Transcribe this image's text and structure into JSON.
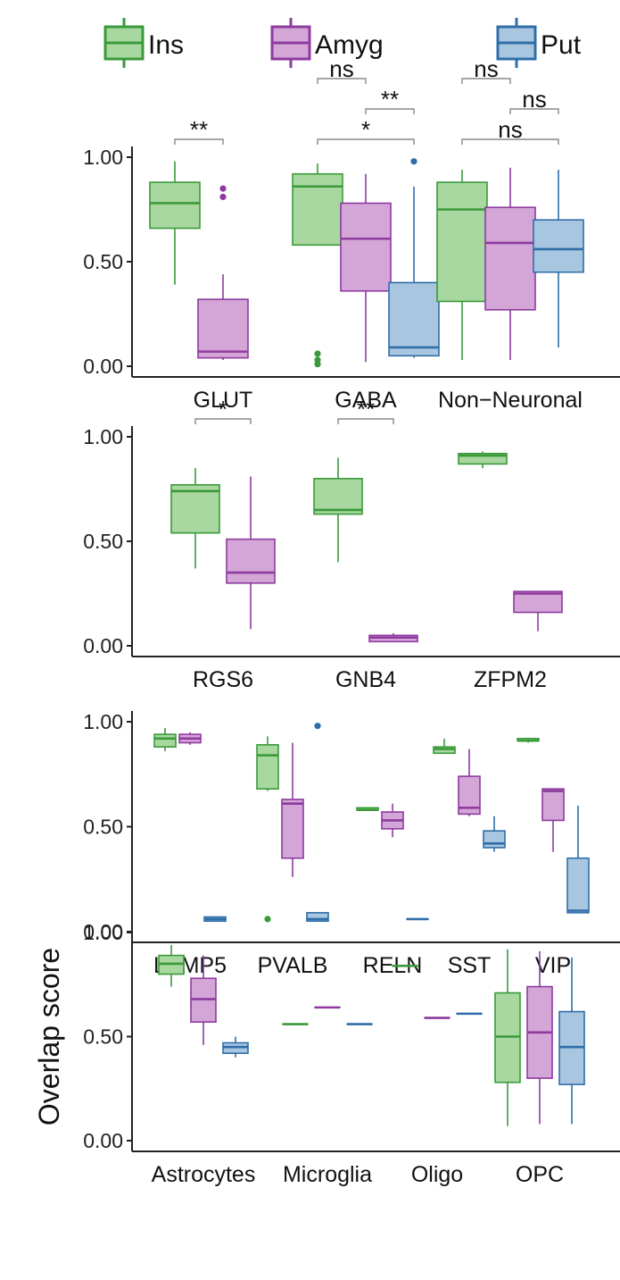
{
  "legend": [
    {
      "name": "Ins",
      "fill": "#a8d8a0",
      "stroke": "#3a9a3a"
    },
    {
      "name": "Amyg",
      "fill": "#d4a6d8",
      "stroke": "#8e3a9e"
    },
    {
      "name": "Put",
      "fill": "#a9c6e0",
      "stroke": "#2f6ea8"
    }
  ],
  "chart_data": [
    {
      "type": "box",
      "ylim": [
        0,
        1
      ],
      "yticks": [
        "0.00",
        "0.50",
        "1.00"
      ],
      "categories": [
        "GLUT",
        "GABA",
        "Non−Neuronal"
      ],
      "boxes": [
        {
          "cat": 0,
          "group": "Ins",
          "min": 0.39,
          "q1": 0.66,
          "median": 0.78,
          "q3": 0.88,
          "max": 0.98,
          "outliers": []
        },
        {
          "cat": 0,
          "group": "Amyg",
          "min": 0.03,
          "q1": 0.04,
          "median": 0.07,
          "q3": 0.32,
          "max": 0.44,
          "outliers": [
            0.81,
            0.85
          ]
        },
        {
          "cat": 1,
          "group": "Ins",
          "min": 0.58,
          "q1": 0.58,
          "median": 0.86,
          "q3": 0.92,
          "max": 0.97,
          "outliers": [
            0.01,
            0.03,
            0.06
          ]
        },
        {
          "cat": 1,
          "group": "Amyg",
          "min": 0.02,
          "q1": 0.36,
          "median": 0.61,
          "q3": 0.78,
          "max": 0.92,
          "outliers": []
        },
        {
          "cat": 1,
          "group": "Put",
          "min": 0.04,
          "q1": 0.05,
          "median": 0.09,
          "q3": 0.4,
          "max": 0.86,
          "outliers": [
            0.98
          ]
        },
        {
          "cat": 2,
          "group": "Ins",
          "min": 0.03,
          "q1": 0.31,
          "median": 0.75,
          "q3": 0.88,
          "max": 0.94,
          "outliers": []
        },
        {
          "cat": 2,
          "group": "Amyg",
          "min": 0.03,
          "q1": 0.27,
          "median": 0.59,
          "q3": 0.76,
          "max": 0.95,
          "outliers": []
        },
        {
          "cat": 2,
          "group": "Put",
          "min": 0.09,
          "q1": 0.45,
          "median": 0.56,
          "q3": 0.7,
          "max": 0.94,
          "outliers": []
        }
      ],
      "annotations": [
        {
          "text": "**",
          "from": [
            0,
            "Ins"
          ],
          "to": [
            0,
            "Amyg"
          ],
          "level": 0
        },
        {
          "text": "ns",
          "from": [
            1,
            "Ins"
          ],
          "to": [
            1,
            "Amyg"
          ],
          "level": 2
        },
        {
          "text": "**",
          "from": [
            1,
            "Amyg"
          ],
          "to": [
            1,
            "Put"
          ],
          "level": 1
        },
        {
          "text": "*",
          "from": [
            1,
            "Ins"
          ],
          "to": [
            1,
            "Put"
          ],
          "level": 0
        },
        {
          "text": "ns",
          "from": [
            2,
            "Ins"
          ],
          "to": [
            2,
            "Amyg"
          ],
          "level": 2
        },
        {
          "text": "ns",
          "from": [
            2,
            "Amyg"
          ],
          "to": [
            2,
            "Put"
          ],
          "level": 1
        },
        {
          "text": "ns",
          "from": [
            2,
            "Ins"
          ],
          "to": [
            2,
            "Put"
          ],
          "level": 0
        }
      ]
    },
    {
      "type": "box",
      "ylim": [
        0,
        1
      ],
      "yticks": [
        "0.00",
        "0.50",
        "1.00"
      ],
      "categories": [
        "RGS6",
        "GNB4",
        "ZFPM2"
      ],
      "boxes": [
        {
          "cat": 0,
          "group": "Ins",
          "min": 0.37,
          "q1": 0.54,
          "median": 0.74,
          "q3": 0.77,
          "max": 0.85,
          "outliers": []
        },
        {
          "cat": 0,
          "group": "Amyg",
          "min": 0.08,
          "q1": 0.3,
          "median": 0.35,
          "q3": 0.51,
          "max": 0.81,
          "outliers": []
        },
        {
          "cat": 1,
          "group": "Ins",
          "min": 0.4,
          "q1": 0.63,
          "median": 0.65,
          "q3": 0.8,
          "max": 0.9,
          "outliers": []
        },
        {
          "cat": 1,
          "group": "Amyg",
          "min": 0.02,
          "q1": 0.02,
          "median": 0.04,
          "q3": 0.05,
          "max": 0.06,
          "outliers": []
        },
        {
          "cat": 2,
          "group": "Ins",
          "min": 0.85,
          "q1": 0.87,
          "median": 0.91,
          "q3": 0.92,
          "max": 0.93,
          "outliers": []
        },
        {
          "cat": 2,
          "group": "Amyg",
          "min": 0.07,
          "q1": 0.16,
          "median": 0.25,
          "q3": 0.26,
          "max": 0.26,
          "outliers": []
        }
      ],
      "annotations": [
        {
          "text": "*",
          "from": [
            0,
            "Ins"
          ],
          "to": [
            0,
            "Amyg"
          ],
          "level": 0
        },
        {
          "text": "**",
          "from": [
            1,
            "Ins"
          ],
          "to": [
            1,
            "Amyg"
          ],
          "level": 0
        }
      ]
    },
    {
      "type": "box",
      "ylim": [
        0,
        1
      ],
      "yticks": [
        "0.00",
        "0.50",
        "1.00"
      ],
      "categories": [
        "LAMP5",
        "PVALB",
        "RELN",
        "SST",
        "VIP"
      ],
      "boxes": [
        {
          "cat": 0,
          "group": "Ins",
          "min": 0.86,
          "q1": 0.88,
          "median": 0.92,
          "q3": 0.94,
          "max": 0.97,
          "outliers": []
        },
        {
          "cat": 0,
          "group": "Amyg",
          "min": 0.89,
          "q1": 0.9,
          "median": 0.92,
          "q3": 0.94,
          "max": 0.95,
          "outliers": []
        },
        {
          "cat": 0,
          "group": "Put",
          "min": 0.05,
          "q1": 0.05,
          "median": 0.06,
          "q3": 0.07,
          "max": 0.07,
          "outliers": []
        },
        {
          "cat": 1,
          "group": "Ins",
          "min": 0.67,
          "q1": 0.68,
          "median": 0.84,
          "q3": 0.89,
          "max": 0.93,
          "outliers": [
            0.06
          ]
        },
        {
          "cat": 1,
          "group": "Amyg",
          "min": 0.26,
          "q1": 0.35,
          "median": 0.61,
          "q3": 0.63,
          "max": 0.9,
          "outliers": []
        },
        {
          "cat": 1,
          "group": "Put",
          "min": 0.05,
          "q1": 0.05,
          "median": 0.06,
          "q3": 0.09,
          "max": 0.09,
          "outliers": [
            0.98
          ]
        },
        {
          "cat": 2,
          "group": "Ins",
          "min": 0.58,
          "q1": 0.58,
          "median": 0.58,
          "q3": 0.59,
          "max": 0.59,
          "outliers": []
        },
        {
          "cat": 2,
          "group": "Amyg",
          "min": 0.45,
          "q1": 0.49,
          "median": 0.53,
          "q3": 0.57,
          "max": 0.61,
          "outliers": []
        },
        {
          "cat": 2,
          "group": "Put",
          "min": 0.06,
          "q1": 0.06,
          "median": 0.06,
          "q3": 0.06,
          "max": 0.06,
          "outliers": []
        },
        {
          "cat": 3,
          "group": "Ins",
          "min": 0.85,
          "q1": 0.85,
          "median": 0.87,
          "q3": 0.88,
          "max": 0.92,
          "outliers": []
        },
        {
          "cat": 3,
          "group": "Amyg",
          "min": 0.55,
          "q1": 0.56,
          "median": 0.59,
          "q3": 0.74,
          "max": 0.87,
          "outliers": []
        },
        {
          "cat": 3,
          "group": "Put",
          "min": 0.38,
          "q1": 0.4,
          "median": 0.42,
          "q3": 0.48,
          "max": 0.55,
          "outliers": []
        },
        {
          "cat": 4,
          "group": "Ins",
          "min": 0.9,
          "q1": 0.91,
          "median": 0.91,
          "q3": 0.92,
          "max": 0.92,
          "outliers": []
        },
        {
          "cat": 4,
          "group": "Amyg",
          "min": 0.38,
          "q1": 0.53,
          "median": 0.67,
          "q3": 0.68,
          "max": 0.68,
          "outliers": []
        },
        {
          "cat": 4,
          "group": "Put",
          "min": 0.09,
          "q1": 0.09,
          "median": 0.1,
          "q3": 0.35,
          "max": 0.6,
          "outliers": []
        }
      ],
      "annotations": []
    },
    {
      "type": "box",
      "ylabel": "Overlap score",
      "ylim": [
        0,
        1
      ],
      "yticks": [
        "0.00",
        "0.50",
        "1.00"
      ],
      "categories": [
        "Astrocytes",
        "Microglia",
        "Oligo",
        "OPC"
      ],
      "boxes": [
        {
          "cat": 0,
          "group": "Ins",
          "min": 0.74,
          "q1": 0.8,
          "median": 0.85,
          "q3": 0.89,
          "max": 0.94,
          "outliers": []
        },
        {
          "cat": 0,
          "group": "Amyg",
          "min": 0.46,
          "q1": 0.57,
          "median": 0.68,
          "q3": 0.78,
          "max": 0.89,
          "outliers": []
        },
        {
          "cat": 0,
          "group": "Put",
          "min": 0.4,
          "q1": 0.42,
          "median": 0.45,
          "q3": 0.47,
          "max": 0.5,
          "outliers": []
        },
        {
          "cat": 1,
          "group": "Ins",
          "min": 0.56,
          "q1": 0.56,
          "median": 0.56,
          "q3": 0.56,
          "max": 0.56,
          "outliers": []
        },
        {
          "cat": 1,
          "group": "Amyg",
          "min": 0.64,
          "q1": 0.64,
          "median": 0.64,
          "q3": 0.64,
          "max": 0.64,
          "outliers": []
        },
        {
          "cat": 1,
          "group": "Put",
          "min": 0.56,
          "q1": 0.56,
          "median": 0.56,
          "q3": 0.56,
          "max": 0.56,
          "outliers": []
        },
        {
          "cat": 2,
          "group": "Ins",
          "min": 0.84,
          "q1": 0.84,
          "median": 0.84,
          "q3": 0.84,
          "max": 0.84,
          "outliers": []
        },
        {
          "cat": 2,
          "group": "Amyg",
          "min": 0.59,
          "q1": 0.59,
          "median": 0.59,
          "q3": 0.59,
          "max": 0.59,
          "outliers": []
        },
        {
          "cat": 2,
          "group": "Put",
          "min": 0.61,
          "q1": 0.61,
          "median": 0.61,
          "q3": 0.61,
          "max": 0.61,
          "outliers": []
        },
        {
          "cat": 3,
          "group": "Ins",
          "min": 0.07,
          "q1": 0.28,
          "median": 0.5,
          "q3": 0.71,
          "max": 0.92,
          "outliers": []
        },
        {
          "cat": 3,
          "group": "Amyg",
          "min": 0.08,
          "q1": 0.3,
          "median": 0.52,
          "q3": 0.74,
          "max": 0.91,
          "outliers": []
        },
        {
          "cat": 3,
          "group": "Put",
          "min": 0.08,
          "q1": 0.27,
          "median": 0.45,
          "q3": 0.62,
          "max": 0.88,
          "outliers": []
        }
      ],
      "annotations": []
    }
  ]
}
